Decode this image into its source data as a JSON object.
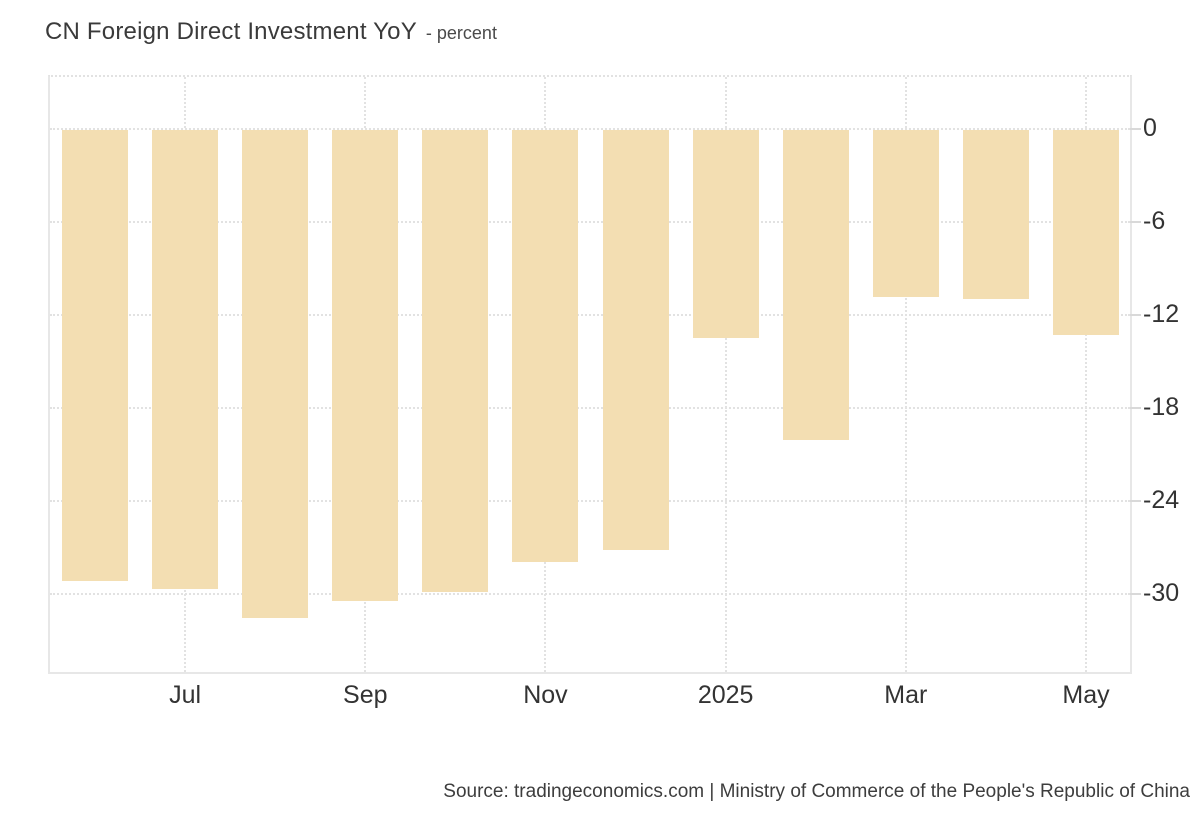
{
  "header": {
    "title": "CN Foreign Direct Investment YoY",
    "subtitle": "- percent"
  },
  "footer": {
    "source_text": "Source: tradingeconomics.com | Ministry of Commerce of the People's Republic of China"
  },
  "colors": {
    "bar_fill": "#F3DEB2",
    "gridline": "#E2E2E2",
    "plot_border": "#E7E7E7",
    "tick_mark": "#D9D9D9",
    "axis_label_text": "#333333",
    "title_text": "#3A3A3A",
    "subtitle_text": "#4A4A4A",
    "source_text": "#3D3D3D",
    "background": "#FFFFFF"
  },
  "chart_data": {
    "type": "bar",
    "title": "CN Foreign Direct Investment YoY",
    "unit": "percent",
    "categories": [
      "Jun 2024",
      "Jul 2024",
      "Aug 2024",
      "Sep 2024",
      "Oct 2024",
      "Nov 2024",
      "Dec 2024",
      "Jan 2025",
      "Feb 2025",
      "Mar 2025",
      "Apr 2025",
      "May 2025"
    ],
    "values": [
      -29.1,
      -29.6,
      -31.5,
      -30.4,
      -29.8,
      -27.9,
      -27.1,
      -13.4,
      -20.0,
      -10.8,
      -10.9,
      -13.2
    ],
    "x_axis": {
      "tick_labels": [
        {
          "label": "Jul",
          "category_index": 1
        },
        {
          "label": "Sep",
          "category_index": 3
        },
        {
          "label": "Nov",
          "category_index": 5
        },
        {
          "label": "2025",
          "category_index": 7
        },
        {
          "label": "Mar",
          "category_index": 9
        },
        {
          "label": "May",
          "category_index": 11
        }
      ]
    },
    "y_axis": {
      "side": "right",
      "ticks": [
        0,
        -6,
        -12,
        -18,
        -24,
        -30
      ],
      "range": [
        3.4,
        -35
      ]
    },
    "grid": "dotted",
    "legend": false,
    "source": "tradingeconomics.com | Ministry of Commerce of the People's Republic of China"
  }
}
